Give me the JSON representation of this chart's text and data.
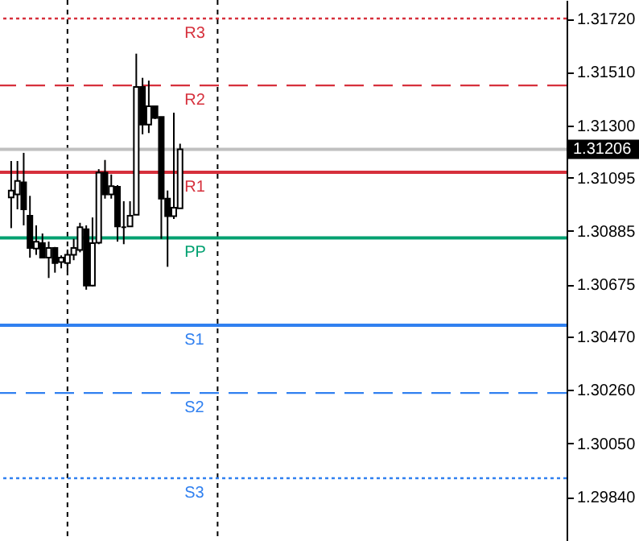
{
  "chart_data": {
    "type": "candlestick",
    "categories": [
      null,
      null,
      null,
      null,
      null,
      null,
      null,
      null,
      null,
      null,
      null,
      null,
      null,
      null,
      null,
      null,
      null,
      null,
      null,
      null,
      null,
      null,
      null,
      null,
      null,
      null,
      null,
      null,
      null,
      null,
      null,
      null,
      null,
      null,
      null,
      null,
      null,
      null,
      null,
      null,
      null,
      null,
      null,
      null,
      null,
      null,
      null,
      null,
      null,
      null,
      null,
      null,
      null,
      null,
      null,
      null,
      null,
      null,
      null,
      null,
      null,
      null,
      null,
      null,
      null,
      null,
      null,
      null,
      null,
      null,
      null,
      null,
      null,
      null,
      null,
      null,
      null,
      null,
      null,
      null,
      null,
      null,
      null,
      null,
      null,
      null,
      null,
      null
    ],
    "ohlc": [
      [
        1.31017,
        1.3116,
        1.30896,
        1.31044
      ],
      [
        1.31029,
        1.3116,
        1.3097,
        1.31082
      ],
      [
        1.31076,
        1.31192,
        1.30907,
        1.3097
      ],
      [
        1.30945,
        1.31023,
        1.3078,
        1.30818
      ],
      [
        1.30816,
        1.30907,
        1.30791,
        1.30843
      ],
      [
        1.30837,
        1.30875,
        1.3078,
        1.3078
      ],
      [
        1.3078,
        1.30843,
        1.307,
        1.30818
      ],
      [
        1.30818,
        1.30822,
        1.30721,
        1.30759
      ],
      [
        1.30763,
        1.30789,
        1.30738,
        1.3078
      ],
      [
        1.30759,
        1.30812,
        1.30727,
        1.30791
      ],
      [
        1.30791,
        1.30854,
        1.3077,
        1.30818
      ],
      [
        1.3081,
        1.30917,
        1.30801,
        1.309
      ],
      [
        1.30892,
        1.30907,
        1.30654,
        1.3067
      ],
      [
        1.3067,
        1.30938,
        1.30668,
        1.30837
      ],
      [
        1.30839,
        1.31128,
        1.30833,
        1.31114
      ],
      [
        1.31114,
        1.31164,
        1.31012,
        1.31029
      ],
      [
        1.31029,
        1.31107,
        1.31012,
        1.31061
      ],
      [
        1.31059,
        1.31065,
        1.30843,
        1.30903
      ],
      [
        1.309,
        1.31002,
        1.30833,
        1.309
      ],
      [
        1.30903,
        1.31002,
        1.30903,
        1.30945
      ],
      [
        1.30949,
        1.31582,
        1.30949,
        1.31451
      ],
      [
        1.31451,
        1.31487,
        1.31265,
        1.31303
      ],
      [
        1.31303,
        1.31476,
        1.3127,
        1.31375
      ],
      [
        1.31375,
        1.31375,
        1.31325,
        1.31329
      ],
      [
        1.31333,
        1.31333,
        1.30854,
        1.31012
      ],
      [
        1.31012,
        1.31044,
        1.30744,
        1.30943
      ],
      [
        1.30943,
        1.3135,
        1.30932,
        1.30976
      ],
      [
        1.30974,
        1.31228,
        1.30974,
        1.31206
      ],
      null,
      null,
      null,
      null,
      null,
      null,
      null,
      null,
      null,
      null,
      null,
      null,
      null,
      null,
      null,
      null,
      null,
      null,
      null,
      null,
      null,
      null,
      null,
      null,
      null,
      null,
      null,
      null,
      null,
      null,
      null,
      null,
      null,
      null,
      null,
      null,
      null,
      null,
      null,
      null,
      null,
      null,
      null,
      null,
      null,
      null,
      null,
      null,
      null,
      null,
      null,
      null,
      null,
      null,
      null,
      null,
      null,
      null,
      null,
      null
    ],
    "ylim": [
      1.29666,
      1.31793
    ],
    "yticks": [
      {
        "value": 1.3172,
        "label": "1.31720"
      },
      {
        "value": 1.3151,
        "label": "1.31510"
      },
      {
        "value": 1.313,
        "label": "1.31300"
      },
      {
        "value": 1.31095,
        "label": "1.31095"
      },
      {
        "value": 1.30885,
        "label": "1.30885"
      },
      {
        "value": 1.30675,
        "label": "1.30675"
      },
      {
        "value": 1.3047,
        "label": "1.30470"
      },
      {
        "value": 1.3026,
        "label": "1.30260"
      },
      {
        "value": 1.3005,
        "label": "1.30050"
      },
      {
        "value": 1.2984,
        "label": "1.29840"
      }
    ],
    "tick_labels": "y",
    "ref_lines": [
      {
        "axis": "y",
        "value": 1.3172,
        "label": "R3",
        "color": "#d6303c",
        "line_style": "dotted"
      },
      {
        "axis": "y",
        "value": 1.31457,
        "label": "R2",
        "color": "#d6303c",
        "line_style": "dashed"
      },
      {
        "axis": "y",
        "value": 1.31116,
        "label": "R1",
        "color": "#d6303c",
        "line_style": "solid"
      },
      {
        "axis": "y",
        "value": 1.30858,
        "label": "PP",
        "color": "#00a070",
        "line_style": "solid"
      },
      {
        "axis": "y",
        "value": 1.30514,
        "label": "S1",
        "color": "#3080f0",
        "line_style": "solid"
      },
      {
        "axis": "y",
        "value": 1.30248,
        "label": "S2",
        "color": "#3080f0",
        "line_style": "dashed"
      },
      {
        "axis": "y",
        "value": 1.29913,
        "label": "S3",
        "color": "#3080f0",
        "line_style": "dotted"
      },
      {
        "axis": "y",
        "value": 1.31206,
        "label": "1.31206",
        "color": "#c0c0c0",
        "line_style": "solid"
      }
    ],
    "grid": false
  }
}
